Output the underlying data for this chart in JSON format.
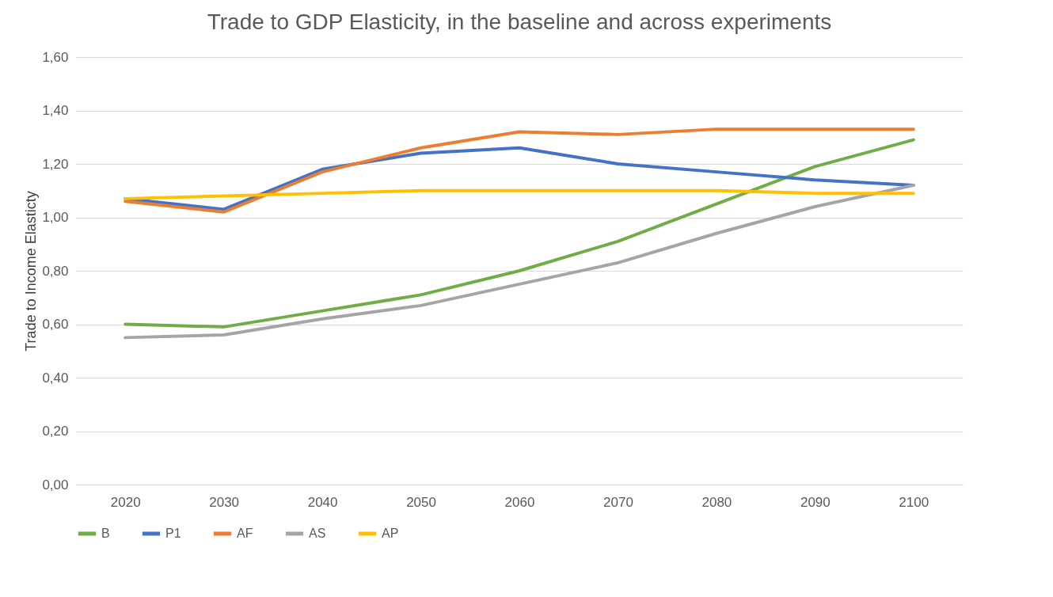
{
  "chart_data": {
    "type": "line",
    "title": "Trade to GDP Elasticity, in the baseline and across experiments",
    "ylabel": "Trade  to Income Elasticty",
    "categories": [
      "2020",
      "2030",
      "2040",
      "2050",
      "2060",
      "2070",
      "2080",
      "2090",
      "2100"
    ],
    "series": [
      {
        "name": "B",
        "color": "#70ad47",
        "values": [
          0.6,
          0.59,
          0.65,
          0.71,
          0.8,
          0.91,
          1.05,
          1.19,
          1.29
        ]
      },
      {
        "name": "P1",
        "color": "#4472c4",
        "values": [
          1.07,
          1.03,
          1.18,
          1.24,
          1.26,
          1.2,
          1.17,
          1.14,
          1.12
        ]
      },
      {
        "name": "AF",
        "color": "#ed7d31",
        "values": [
          1.06,
          1.02,
          1.17,
          1.26,
          1.32,
          1.31,
          1.33,
          1.33,
          1.33
        ]
      },
      {
        "name": "AS",
        "color": "#a5a5a5",
        "values": [
          0.55,
          0.56,
          0.62,
          0.67,
          0.75,
          0.83,
          0.94,
          1.04,
          1.12
        ]
      },
      {
        "name": "AP",
        "color": "#ffc000",
        "values": [
          1.07,
          1.08,
          1.09,
          1.1,
          1.1,
          1.1,
          1.1,
          1.09,
          1.09
        ]
      }
    ],
    "ylim": [
      0,
      1.6
    ],
    "yticks": [
      {
        "value": 0,
        "label": "0,00"
      },
      {
        "value": 0.2,
        "label": "0,20"
      },
      {
        "value": 0.4,
        "label": "0,40"
      },
      {
        "value": 0.6,
        "label": "0,60"
      },
      {
        "value": 0.8,
        "label": "0,80"
      },
      {
        "value": 1.0,
        "label": "1,00"
      },
      {
        "value": 1.2,
        "label": "1,20"
      },
      {
        "value": 1.4,
        "label": "1,40"
      },
      {
        "value": 1.6,
        "label": "1,60"
      }
    ],
    "grid": "y",
    "legend": "bottom",
    "marker": "none",
    "line_style": "solid"
  }
}
